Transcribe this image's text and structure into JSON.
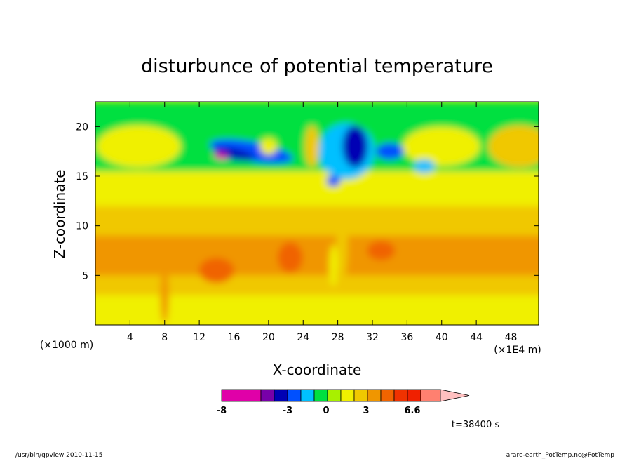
{
  "chart_data": {
    "type": "heatmap",
    "title": "disturbunce of potential temperature",
    "xlabel": "X-coordinate",
    "ylabel": "Z-coordinate",
    "x_unit_label": "(×1E4 m)",
    "y_unit_label": "(×1000 m)",
    "x_ticks": [
      "4",
      "8",
      "12",
      "16",
      "20",
      "24",
      "28",
      "32",
      "36",
      "40",
      "44",
      "48"
    ],
    "y_ticks": [
      "5",
      "10",
      "15",
      "20"
    ],
    "xlim": [
      0,
      51.2
    ],
    "ylim": [
      0,
      22.5
    ],
    "colorbar": {
      "tick_labels": [
        "-8",
        "-3",
        "0",
        "3",
        "6.6"
      ],
      "colors": [
        "#e000a8",
        "#e000a8",
        "#7800a8",
        "#0000b4",
        "#0050ff",
        "#00c0ff",
        "#00e040",
        "#a8f000",
        "#f0f000",
        "#f0c800",
        "#f09600",
        "#f06400",
        "#f03200",
        "#f02000",
        "#ff8070",
        "#ffc0c0"
      ]
    },
    "time_label": "t=38400 s"
  },
  "footer": {
    "left": "/usr/bin/gpview   2010-11-15",
    "right": "arare-earth_PotTemp.nc@PotTemp"
  }
}
